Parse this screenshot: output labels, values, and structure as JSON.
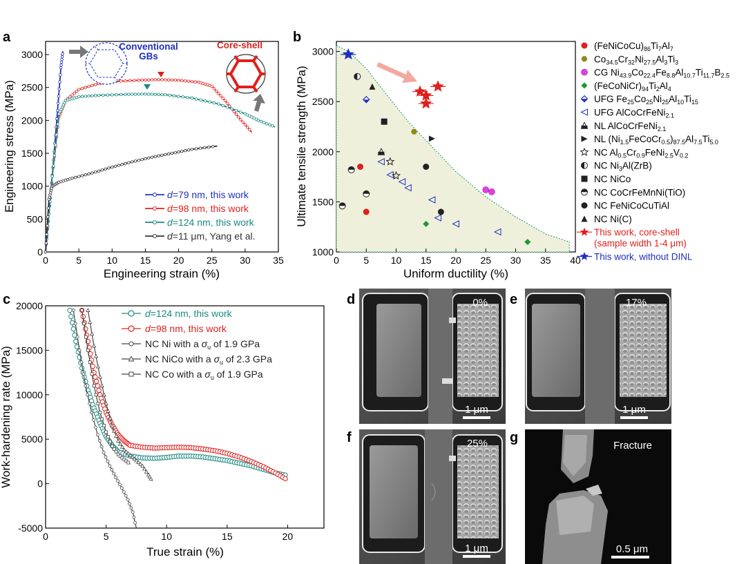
{
  "panel_labels": {
    "a": "a",
    "b": "b",
    "c": "c",
    "d": "d",
    "e": "e",
    "f": "f",
    "g": "g"
  },
  "colors": {
    "blue": "#1f2fbf",
    "red": "#e0201c",
    "teal": "#1a8a80",
    "black": "#222222",
    "olive": "#8c8a1a",
    "magenta": "#e040e0",
    "green": "#1a9a2a",
    "shade": "#eef0dc"
  },
  "chart_data": [
    {
      "panel": "a",
      "type": "line",
      "xlabel": "Engineering strain (%)",
      "ylabel": "Engineering stress (MPa)",
      "xlim": [
        0,
        35
      ],
      "ylim": [
        0,
        3200
      ],
      "xticks": [
        "0",
        "5",
        "10",
        "15",
        "20",
        "25",
        "30",
        "35"
      ],
      "yticks": [
        "0",
        "500",
        "1000",
        "1500",
        "2000",
        "2500",
        "3000"
      ],
      "series": [
        {
          "name_prefix": "d",
          "name_rest": "=79 nm, this work",
          "color": "#1f2fbf",
          "x": [
            0,
            0.6,
            1.2,
            1.8,
            2.3,
            2.6
          ],
          "y": [
            0,
            700,
            1400,
            2150,
            2800,
            3050
          ]
        },
        {
          "name_prefix": "d",
          "name_rest": "=98 nm, this work",
          "color": "#e0201c",
          "x": [
            0,
            1,
            2,
            3,
            5,
            8,
            10,
            14,
            17,
            20,
            23,
            25,
            27,
            29,
            31
          ],
          "y": [
            0,
            1150,
            2050,
            2300,
            2470,
            2560,
            2590,
            2610,
            2620,
            2610,
            2580,
            2520,
            2300,
            2050,
            1820
          ]
        },
        {
          "name_prefix": "d",
          "name_rest": "=124 nm, this work",
          "color": "#1a8a80",
          "x": [
            0,
            1,
            2,
            3,
            5,
            8,
            12,
            15,
            18,
            22,
            26,
            30,
            32,
            34.5
          ],
          "y": [
            0,
            1150,
            2100,
            2300,
            2360,
            2380,
            2395,
            2400,
            2390,
            2340,
            2250,
            2100,
            2000,
            1900
          ]
        },
        {
          "name_prefix": "d",
          "name_rest": "=11 μm, Yang et al.",
          "color": "#333333",
          "x": [
            0,
            0.5,
            1,
            2,
            4,
            7,
            10,
            13,
            16,
            19,
            22,
            25.8
          ],
          "y": [
            0,
            800,
            1000,
            1060,
            1120,
            1200,
            1290,
            1370,
            1440,
            1500,
            1560,
            1610
          ]
        }
      ],
      "annotations": {
        "conventional": "Conventional\nGBs",
        "coreshell": "Core-shell"
      }
    },
    {
      "panel": "b",
      "type": "scatter",
      "xlabel": "Uniform ductility (%)",
      "ylabel": "Ultimate tensile strength (MPa)",
      "xlim": [
        0,
        40
      ],
      "ylim": [
        1000,
        3100
      ],
      "xticks": [
        "0",
        "5",
        "10",
        "15",
        "20",
        "25",
        "30",
        "35",
        "40"
      ],
      "yticks": [
        "1000",
        "1500",
        "2000",
        "2500",
        "3000"
      ],
      "series": [
        {
          "name": "(FeNiCoCu)86Ti7Al7",
          "color": "#e0201c",
          "marker": "circle",
          "points": [
            [
              4,
              1850
            ],
            [
              5,
              1400
            ]
          ]
        },
        {
          "name": "Co34.5Cr32Ni27.5Al3Ti3",
          "color": "#8c8a1a",
          "marker": "hexagon",
          "points": [
            [
              13,
              2200
            ]
          ]
        },
        {
          "name": "CG Ni43.9Co22.4Fe8.8Al10.7Ti11.7B2.5",
          "color": "#e040e0",
          "marker": "sphere",
          "points": [
            [
              25,
              1620
            ],
            [
              26,
              1600
            ]
          ]
        },
        {
          "name": "(FeCoNiCr)94Ti2Al4",
          "color": "#1a9a2a",
          "marker": "diamond",
          "points": [
            [
              15,
              1280
            ],
            [
              32,
              1100
            ]
          ]
        },
        {
          "name": "UFG Fe25Co25Ni25Al10Ti15",
          "color": "#1f2fbf",
          "marker": "halfdiamond",
          "points": [
            [
              5,
              2520
            ]
          ]
        },
        {
          "name": "UFG AlCoCrFeNi2.1",
          "color": "#1f2fbf",
          "marker": "tri-left",
          "points": [
            [
              7.5,
              1900
            ],
            [
              9,
              1770
            ],
            [
              11,
              1700
            ],
            [
              12,
              1640
            ],
            [
              16,
              1520
            ],
            [
              17,
              1340
            ],
            [
              20,
              1280
            ],
            [
              27,
              1200
            ]
          ]
        },
        {
          "name": "NL AlCoCrFeNi2.1",
          "color": "#222222",
          "marker": "tri-up-half",
          "points": [
            [
              7.5,
              2000
            ]
          ]
        },
        {
          "name": "NL (Ni1.5FeCoCr0.5)87.5Al7.5Ti5.0",
          "color": "#222222",
          "marker": "tri-right",
          "points": [
            [
              16,
              2130
            ]
          ]
        },
        {
          "name": "NC Al0.5Cr0.9FeNi2.5V0.2",
          "color": "#222222",
          "marker": "star",
          "points": [
            [
              9,
              1900
            ],
            [
              10,
              1760
            ]
          ]
        },
        {
          "name": "NC Ni3Al(ZrB)",
          "color": "#222222",
          "marker": "circle-half-v",
          "points": [
            [
              3.5,
              2750
            ]
          ]
        },
        {
          "name": "NC NiCo",
          "color": "#222222",
          "marker": "square",
          "points": [
            [
              8,
              2300
            ]
          ]
        },
        {
          "name": "NC CoCrFeMnNi(TiO)",
          "color": "#222222",
          "marker": "circle-half-h",
          "points": [
            [
              1,
              1460
            ],
            [
              2.5,
              1820
            ],
            [
              5,
              1580
            ]
          ]
        },
        {
          "name": "NC FeNiCoCuTiAl",
          "color": "#222222",
          "marker": "circle",
          "points": [
            [
              15,
              1850
            ],
            [
              17.5,
              1400
            ]
          ]
        },
        {
          "name": "NC Ni(C)",
          "color": "#222222",
          "marker": "tri-up",
          "points": [
            [
              6,
              2650
            ]
          ]
        },
        {
          "name": "This work, core-shell\n(sample width 1-4 μm)",
          "color": "#e0201c",
          "marker": "star-big",
          "points": [
            [
              14,
              2600
            ],
            [
              15,
              2560
            ],
            [
              15,
              2480
            ],
            [
              17,
              2650
            ]
          ]
        },
        {
          "name": "This work, without DINL",
          "color": "#1f2fbf",
          "marker": "star-big",
          "points": [
            [
              2,
              2970
            ]
          ]
        }
      ],
      "envelope": {
        "x": [
          0,
          2,
          5,
          8,
          12,
          16,
          20,
          25,
          30,
          35,
          39
        ],
        "y": [
          3060,
          3000,
          2830,
          2600,
          2300,
          2050,
          1800,
          1550,
          1350,
          1180,
          1100
        ]
      }
    },
    {
      "panel": "c",
      "type": "line",
      "xlabel": "True strain (%)",
      "ylabel": "Work-hardening rate (MPa)",
      "xlim": [
        0,
        23
      ],
      "ylim": [
        -5000,
        20000
      ],
      "xticks": [
        "0",
        "5",
        "10",
        "15",
        "20"
      ],
      "yticks": [
        "-5000",
        "0",
        "5000",
        "10000",
        "15000",
        "20000"
      ],
      "series": [
        {
          "name_prefix": "d",
          "name_rest": "=124 nm, this work",
          "color": "#1a8a80",
          "marker": "circle",
          "x": [
            2,
            2.5,
            3,
            3.5,
            4,
            4.5,
            5,
            5.5,
            6,
            7,
            8,
            9,
            10,
            11,
            12,
            13,
            14,
            15,
            16,
            17,
            18,
            19,
            20
          ],
          "y": [
            19500,
            16000,
            13000,
            10500,
            8500,
            6800,
            5300,
            4300,
            3600,
            3100,
            2900,
            2850,
            2950,
            3100,
            3100,
            3000,
            2800,
            2600,
            2300,
            2000,
            1600,
            1200,
            900
          ]
        },
        {
          "name_prefix": "d",
          "name_rest": "=98 nm, this work",
          "color": "#e0201c",
          "marker": "circle",
          "x": [
            3,
            3.5,
            4,
            4.5,
            5,
            5.5,
            6,
            6.5,
            7,
            8,
            9,
            10,
            11,
            12,
            13,
            14,
            15,
            16,
            17,
            18,
            19,
            20
          ],
          "y": [
            19500,
            16000,
            12500,
            10000,
            8000,
            6600,
            5500,
            4800,
            4300,
            4100,
            4000,
            4050,
            4100,
            4050,
            3900,
            3700,
            3400,
            3000,
            2500,
            1900,
            1200,
            400
          ]
        },
        {
          "name": "NC Ni with a σu of 1.9 GPa",
          "color": "#444444",
          "marker": "circle-small",
          "x": [
            2.3,
            2.8,
            3.3,
            3.8,
            4.3,
            4.8,
            5.3,
            5.8,
            6.3,
            6.8,
            7.2,
            7.5
          ],
          "y": [
            19500,
            15000,
            11000,
            8000,
            5500,
            3500,
            2000,
            700,
            -500,
            -1800,
            -3200,
            -5000
          ]
        },
        {
          "name": "NC NiCo with a σu of 2.3 GPa",
          "color": "#444444",
          "marker": "triangle",
          "x": [
            3.5,
            4,
            4.5,
            5,
            5.5,
            6,
            6.5,
            7,
            7.5,
            8,
            8.5,
            8.8
          ],
          "y": [
            19500,
            15500,
            12000,
            9000,
            6500,
            4800,
            3800,
            3200,
            2600,
            2000,
            1000,
            300
          ]
        },
        {
          "name": "NC Co with a σu of 1.9 GPa",
          "color": "#444444",
          "marker": "square",
          "x": [
            3,
            3.5,
            4,
            4.5,
            5,
            5.5,
            6,
            6.5,
            7
          ],
          "y": [
            19500,
            15000,
            11000,
            8000,
            5800,
            4200,
            3300,
            2700,
            2200
          ]
        }
      ],
      "legend_labels": {
        "ni": {
          "prefix": "NC Ni with a ",
          "sigma": "σ",
          "sub": "u",
          "rest": " of 1.9 GPa"
        },
        "nico": {
          "prefix": "NC NiCo with a ",
          "sigma": "σ",
          "sub": "u",
          "rest": " of 2.3 GPa"
        },
        "co": {
          "prefix": "NC Co with a ",
          "sigma": "σ",
          "sub": "u",
          "rest": " of 1.9 GPa"
        }
      }
    }
  ],
  "sem": {
    "d": {
      "strain": "0%",
      "scale": "1 μm"
    },
    "e": {
      "strain": "17%",
      "scale": "1 μm"
    },
    "f": {
      "strain": "25%",
      "scale": "1 μm"
    },
    "g": {
      "label": "Fracture",
      "scale": "0.5 μm"
    }
  },
  "legend_b_sub": [
    [
      "(FeNiCoCu)",
      "86",
      "Ti",
      "7",
      "Al",
      "7"
    ],
    [
      "Co",
      "34.5",
      "Cr",
      "32",
      "Ni",
      "27.5",
      "Al",
      "3",
      "Ti",
      "3"
    ],
    [
      "CG Ni",
      "43.9",
      "Co",
      "22.4",
      "Fe",
      "8.8",
      "Al",
      "10.7",
      "Ti",
      "11.7",
      "B",
      "2.5"
    ],
    [
      "(FeCoNiCr)",
      "94",
      "Ti",
      "2",
      "Al",
      "4"
    ],
    [
      "UFG Fe",
      "25",
      "Co",
      "25",
      "Ni",
      "25",
      "Al",
      "10",
      "Ti",
      "15"
    ],
    [
      "UFG AlCoCrFeNi",
      "2.1"
    ],
    [
      "NL AlCoCrFeNi",
      "2.1"
    ],
    [
      "NL (Ni",
      "1.5",
      "FeCoCr",
      "0.5",
      ")",
      "87.5",
      "Al",
      "7.5",
      "Ti",
      "5.0"
    ],
    [
      "NC Al",
      "0.5",
      "Cr",
      "0.9",
      "FeNi",
      "2.5",
      "V",
      "0.2"
    ],
    [
      "NC Ni",
      "3",
      "Al(ZrB)"
    ],
    [
      "NC NiCo"
    ],
    [
      "NC CoCrFeMnNi(TiO)"
    ],
    [
      "NC FeNiCoCuTiAl"
    ],
    [
      "NC Ni(C)"
    ],
    [
      "This work, core-shell"
    ],
    [
      "(sample width 1-4 μm)"
    ],
    [
      "This work, without DINL"
    ]
  ]
}
